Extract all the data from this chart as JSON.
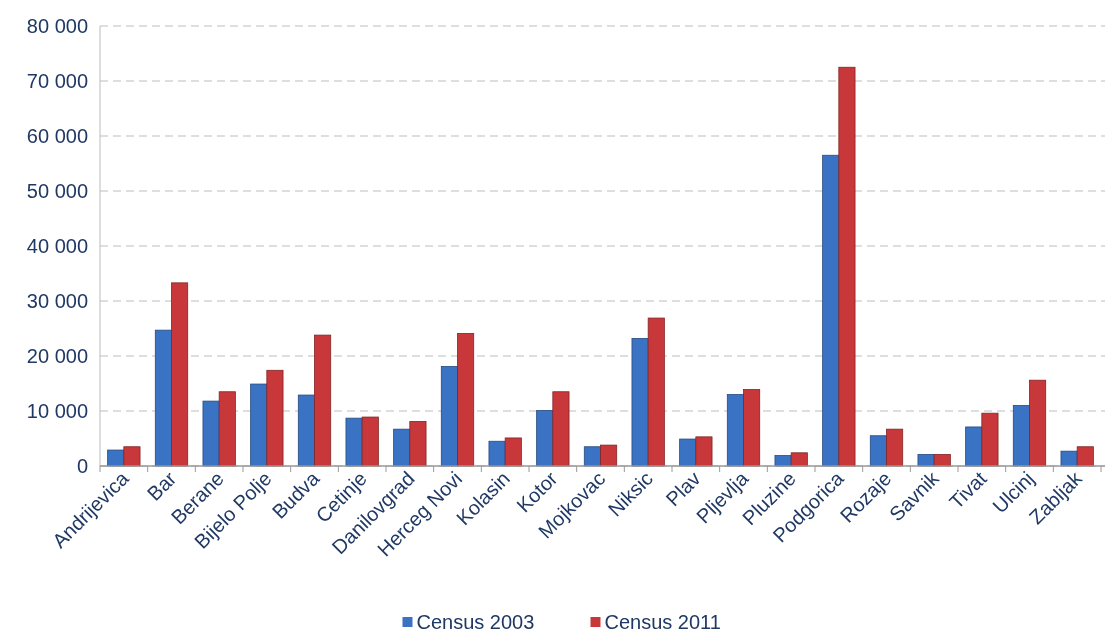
{
  "chart_data": {
    "type": "bar",
    "categories": [
      "Andrijevica",
      "Bar",
      "Berane",
      "Bijelo Polje",
      "Budva",
      "Cetinje",
      "Danilovgrad",
      "Herceg Novi",
      "Kolasin",
      "Kotor",
      "Mojkovac",
      "Niksic",
      "Plav",
      "Pljevlja",
      "Pluzine",
      "Podgorica",
      "Rozaje",
      "Savnik",
      "Tivat",
      "Ulcinj",
      "Zabljak"
    ],
    "series": [
      {
        "name": "Census 2003",
        "color": "#3a72c4",
        "values": [
          2900,
          24700,
          11800,
          14900,
          12900,
          8700,
          6700,
          18100,
          4500,
          10100,
          3500,
          23200,
          4900,
          13000,
          1900,
          56500,
          5500,
          2100,
          7100,
          11000,
          2700
        ]
      },
      {
        "name": "Census 2011",
        "color": "#c8383a",
        "values": [
          3500,
          33300,
          13500,
          17400,
          23800,
          8900,
          8100,
          24100,
          5100,
          13500,
          3800,
          26900,
          5300,
          13900,
          2400,
          72500,
          6700,
          2100,
          9600,
          15600,
          3500
        ]
      }
    ],
    "ylim": [
      0,
      80000
    ],
    "yticks": [
      {
        "value": 0,
        "label": "0"
      },
      {
        "value": 10000,
        "label": "10 000"
      },
      {
        "value": 20000,
        "label": "20 000"
      },
      {
        "value": 30000,
        "label": "30 000"
      },
      {
        "value": 40000,
        "label": "40 000"
      },
      {
        "value": 50000,
        "label": "50 000"
      },
      {
        "value": 60000,
        "label": "60 000"
      },
      {
        "value": 70000,
        "label": "70 000"
      },
      {
        "value": 80000,
        "label": "80 000"
      }
    ],
    "grid": "y",
    "legend": "bottom"
  }
}
